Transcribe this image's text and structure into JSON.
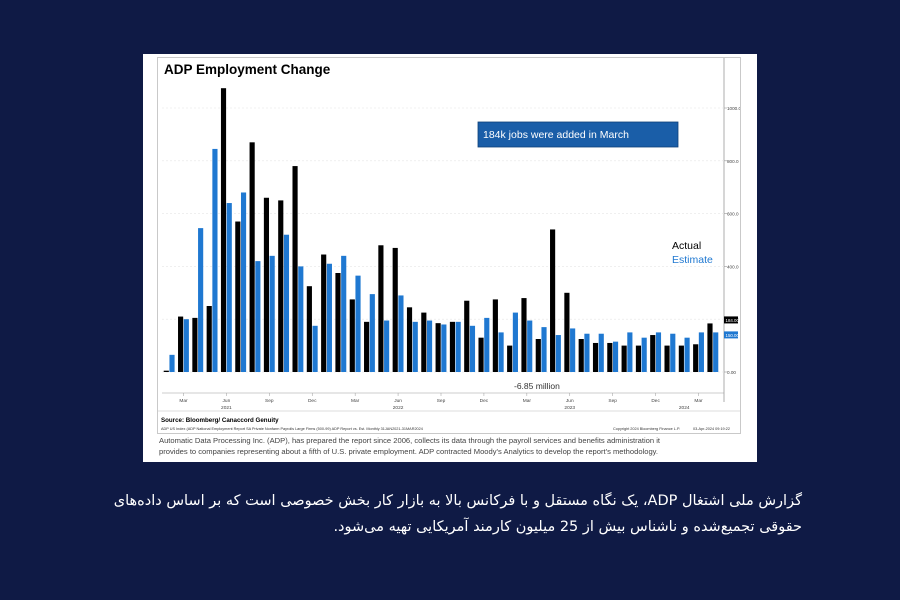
{
  "caption": "گزارش ملی اشتغال ADP، یک نگاه مستقل و با فرکانس بالا به بازار کار بخش خصوصی است که بر اساس داده‌های حقوقی تجمیع‌شده و ناشناس بیش از 25 میلیون کارمند آمریکایی تهیه می‌شود.",
  "footnote": {
    "line1": "Automatic Data Processing Inc. (ADP), has prepared the report since 2006, collects its data through the payroll services and benefits administration it",
    "line2": "provides to companies representing about a fifth of U.S. private employment. ADP contracted Moody's Analytics to develop the report's methodology."
  },
  "chart_data": {
    "type": "bar",
    "title": "ADP Employment Change",
    "annotation_box": "184k jobs were added in March",
    "annotation_low": "-6.85 million",
    "legend": [
      {
        "label": "Actual",
        "color": "#000000"
      },
      {
        "label": "Estimate",
        "color": "#1f78d1"
      }
    ],
    "source": "Source: Bloomberg/ Canaccord Genuity",
    "source_detail": "ADP US Index (ADP National Employment Report SA Private Nonfarm Payrolls Large Firms (500-99) ADP Report vs. Est. Monthly 31JAN2021-31MAR2024",
    "copyright": "Copyright 2024 Bloomberg Finance L.P.",
    "timestamp": "03-Apr-2024 09:19:22",
    "ylim": [
      -10,
      1080
    ],
    "yticks": [
      "0.00",
      "200.0",
      "400.0",
      "600.0",
      "800.0",
      "1000.0"
    ],
    "ytick_values": [
      0,
      200,
      400,
      600,
      800,
      1000
    ],
    "end_labels": [
      {
        "value": 184,
        "text": "184.00",
        "color": "#000000"
      },
      {
        "value": 150,
        "text": "150.00",
        "color": "#1f78d1"
      }
    ],
    "xticks_month": [
      {
        "i": 1,
        "label": "Mar"
      },
      {
        "i": 4,
        "label": "Jun"
      },
      {
        "i": 7,
        "label": "Sep"
      },
      {
        "i": 10,
        "label": "Dec"
      },
      {
        "i": 13,
        "label": "Mar"
      },
      {
        "i": 16,
        "label": "Jun"
      },
      {
        "i": 19,
        "label": "Sep"
      },
      {
        "i": 22,
        "label": "Dec"
      },
      {
        "i": 25,
        "label": "Mar"
      },
      {
        "i": 28,
        "label": "Jun"
      },
      {
        "i": 31,
        "label": "Sep"
      },
      {
        "i": 34,
        "label": "Dec"
      },
      {
        "i": 37,
        "label": "Mar"
      }
    ],
    "xticks_year": [
      {
        "i": 4,
        "label": "2021"
      },
      {
        "i": 16,
        "label": "2022"
      },
      {
        "i": 28,
        "label": "2023"
      },
      {
        "i": 36,
        "label": "2024"
      }
    ],
    "series": [
      {
        "name": "Actual",
        "color": "#000000",
        "values": [
          5,
          210,
          205,
          250,
          1075,
          570,
          870,
          660,
          650,
          780,
          325,
          445,
          375,
          275,
          190,
          480,
          470,
          245,
          225,
          185,
          190,
          270,
          130,
          275,
          100,
          280,
          125,
          540,
          300,
          125,
          110,
          110,
          100,
          100,
          140,
          100,
          100,
          105,
          184
        ]
      },
      {
        "name": "Estimate",
        "color": "#1f78d1",
        "values": [
          65,
          200,
          545,
          845,
          640,
          680,
          420,
          440,
          520,
          400,
          175,
          410,
          440,
          365,
          295,
          195,
          290,
          190,
          195,
          180,
          190,
          175,
          205,
          150,
          225,
          195,
          170,
          140,
          165,
          145,
          145,
          115,
          150,
          130,
          150,
          145,
          130,
          150,
          150
        ]
      }
    ]
  }
}
